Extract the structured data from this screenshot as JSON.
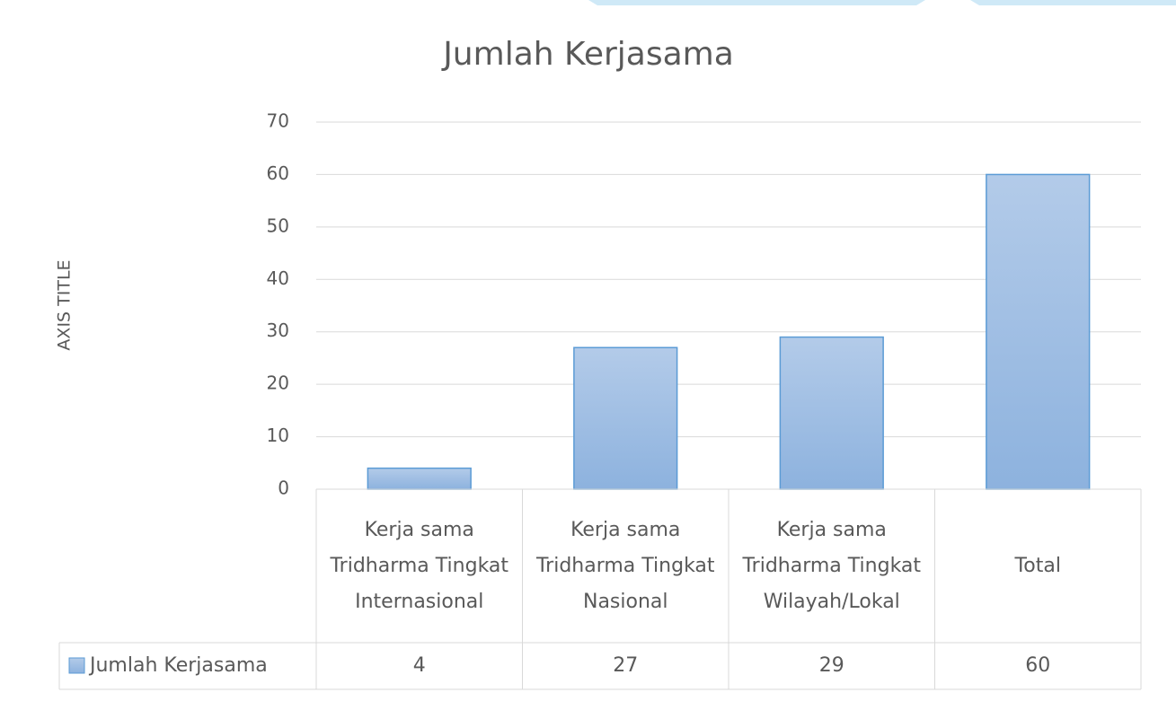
{
  "chart_data": {
    "type": "bar",
    "title": "Jumlah  Kerjasama",
    "y_axis_title": "AXIS TITLE",
    "categories": [
      "Kerja sama Tridharma Tingkat Internasional",
      "Kerja sama Tridharma Tingkat Nasional",
      "Kerja sama Tridharma Tingkat Wilayah/Lokal",
      "Total"
    ],
    "series": [
      {
        "name": "Jumlah Kerjasama",
        "color": "#9dbce3",
        "values": [
          4,
          27,
          29,
          60
        ]
      }
    ],
    "ylim": [
      0,
      70
    ],
    "yticks": [
      0,
      10,
      20,
      30,
      40,
      50,
      60,
      70
    ],
    "grid": true,
    "data_table": true
  }
}
